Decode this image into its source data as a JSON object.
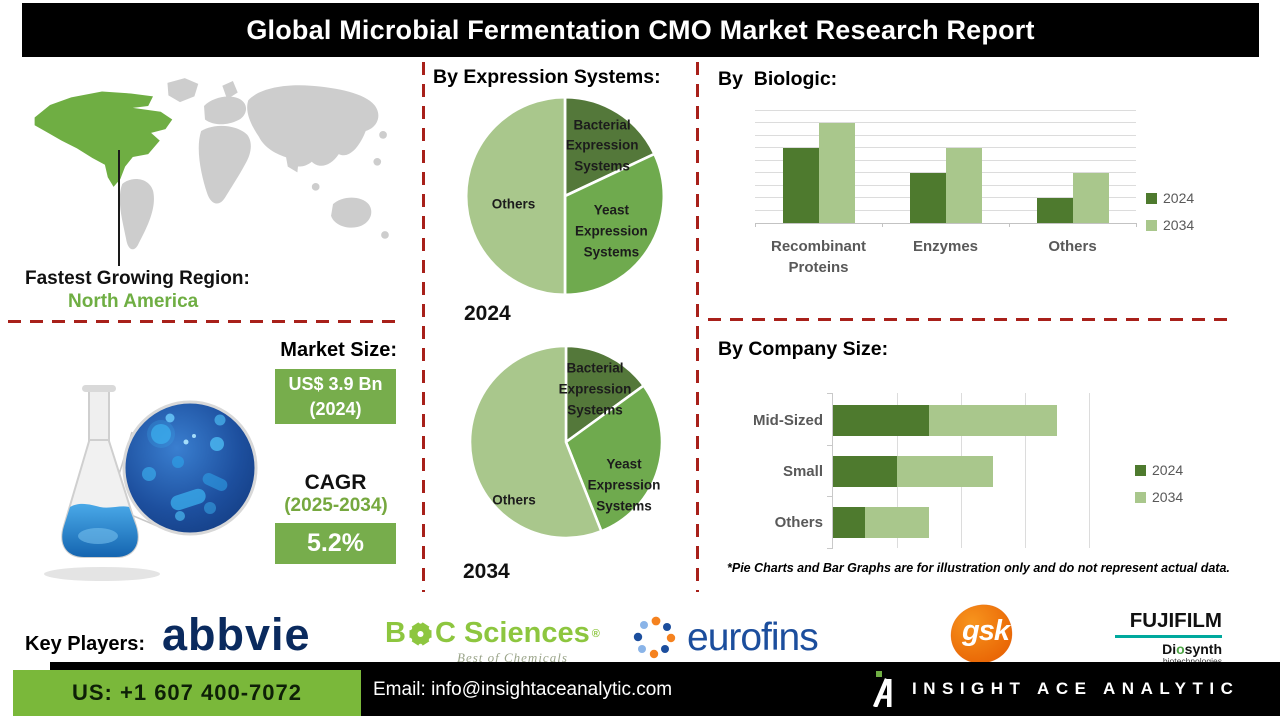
{
  "title": "Global Microbial Fermentation CMO Market Research Report",
  "region": {
    "label": "Fastest Growing Region:",
    "value": "North America"
  },
  "market_size": {
    "heading": "Market Size:",
    "value": "US$ 3.9 Bn",
    "value_year": "(2024)",
    "cagr_label": "CAGR",
    "cagr_period": "(2025-2034)",
    "cagr_value": "5.2%"
  },
  "sections": {
    "expression_heading": "By Expression Systems:",
    "biologic_heading": "By  Biologic:",
    "company_heading": "By Company Size:"
  },
  "disclaimer": "*Pie Charts and Bar Graphs are for illustration only and do not represent actual data.",
  "key_players": {
    "label": "Key Players:",
    "abbvie": "abbvie",
    "boc_b": "B",
    "boc_rest": "C Sciences",
    "boc_reg": "®",
    "boc_tagline": "Best of Chemicals",
    "eurofins": "eurofins",
    "gsk": "gsk",
    "fujifilm": "FUJIFILM",
    "diosynth_d": "Di",
    "diosynth_o": "o",
    "diosynth_rest": "synth",
    "biotech": "biotechnologies"
  },
  "footer": {
    "phone": "US: +1 607 400-7072",
    "email": "Email: info@insightaceanalytic.com",
    "brand": "INSIGHT ACE ANALYTIC"
  },
  "colors": {
    "green_dark": "#4e7a2e",
    "green_mid": "#6faa4e",
    "green_light": "#a9c78c",
    "pie_bacterial": "#54783a",
    "box_green": "#77ad4c",
    "map_green": "#6fae43",
    "footer_green": "#7ab83a",
    "dashed_red": "#a8201a",
    "label_gray": "#595959"
  },
  "chart_data": [
    {
      "type": "pie",
      "title": "By Expression Systems",
      "year": "2024",
      "labels": [
        "Bacterial Expression Systems",
        "Yeast Expression Systems",
        "Others"
      ],
      "values": [
        18,
        32,
        50
      ],
      "colors": [
        "#54783a",
        "#6faa4e",
        "#a9c78c"
      ],
      "legend_position": "inside"
    },
    {
      "type": "pie",
      "title": "By Expression Systems",
      "year": "2034",
      "labels": [
        "Bacterial Expression Systems",
        "Yeast Expression Systems",
        "Others"
      ],
      "values": [
        15,
        29,
        56
      ],
      "colors": [
        "#54783a",
        "#6faa4e",
        "#a9c78c"
      ],
      "legend_position": "inside"
    },
    {
      "type": "bar",
      "title": "By Biologic",
      "categories": [
        "Recombinant Proteins",
        "Enzymes",
        "Others"
      ],
      "series": [
        {
          "name": "2024",
          "values": [
            6,
            4,
            2
          ],
          "color": "#4e7a2e"
        },
        {
          "name": "2034",
          "values": [
            8,
            6,
            4
          ],
          "color": "#a9c78c"
        }
      ],
      "ylim": [
        0,
        9
      ],
      "grid": true,
      "legend_position": "right",
      "note": "illustrative only"
    },
    {
      "type": "hbar-stacked",
      "title": "By Company Size",
      "categories": [
        "Mid-Sized",
        "Small",
        "Others"
      ],
      "series": [
        {
          "name": "2024",
          "values": [
            1.5,
            1.0,
            0.5
          ],
          "color": "#4e7a2e"
        },
        {
          "name": "2034",
          "values": [
            2.0,
            1.5,
            1.0
          ],
          "color": "#a9c78c"
        }
      ],
      "xlim": [
        0,
        4
      ],
      "grid": true,
      "legend_position": "right",
      "note": "illustrative only"
    }
  ]
}
